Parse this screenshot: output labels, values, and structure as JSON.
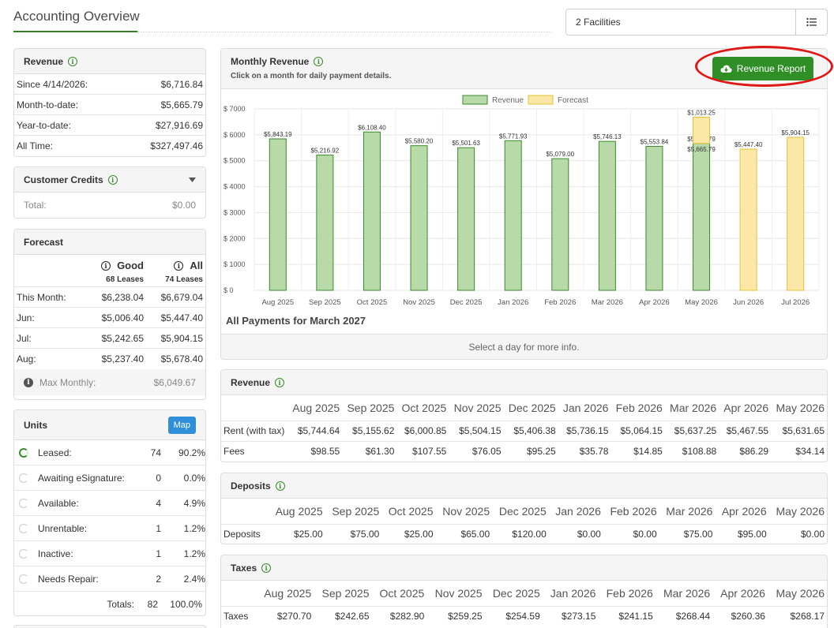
{
  "header": {
    "title": "Accounting Overview",
    "facility_select": "2 Facilities",
    "list_icon": "list-icon"
  },
  "revenue_summary": {
    "title": "Revenue",
    "rows": [
      {
        "label": "Since 4/14/2026:",
        "value": "$6,716.84"
      },
      {
        "label": "Month-to-date:",
        "value": "$5,665.79"
      },
      {
        "label": "Year-to-date:",
        "value": "$27,916.69"
      },
      {
        "label": "All Time:",
        "value": "$327,497.46"
      }
    ]
  },
  "customer_credits": {
    "title": "Customer Credits",
    "total_label": "Total:",
    "total_value": "$0.00"
  },
  "forecast": {
    "title": "Forecast",
    "col_good": "Good",
    "col_all": "All",
    "good_leases": "68 Leases",
    "all_leases": "74 Leases",
    "rows": [
      {
        "label": "This Month:",
        "good": "$6,238.04",
        "all": "$6,679.04"
      },
      {
        "label": "Jun:",
        "good": "$5,006.40",
        "all": "$5,447.40"
      },
      {
        "label": "Jul:",
        "good": "$5,242.65",
        "all": "$5,904.15"
      },
      {
        "label": "Aug:",
        "good": "$5,237.40",
        "all": "$5,678.40"
      }
    ],
    "max_label": "Max Monthly:",
    "max_value": "$6,049.67"
  },
  "units": {
    "title": "Units",
    "map_button": "Map",
    "rows": [
      {
        "label": "Leased:",
        "count": "74",
        "pct": "90.2%"
      },
      {
        "label": "Awaiting eSignature:",
        "count": "0",
        "pct": "0.0%"
      },
      {
        "label": "Available:",
        "count": "4",
        "pct": "4.9%"
      },
      {
        "label": "Unrentable:",
        "count": "1",
        "pct": "1.2%"
      },
      {
        "label": "Inactive:",
        "count": "1",
        "pct": "1.2%"
      },
      {
        "label": "Needs Repair:",
        "count": "2",
        "pct": "2.4%"
      }
    ],
    "totals_label": "Totals:",
    "totals_count": "82",
    "totals_pct": "100.0%"
  },
  "monthly_revenue": {
    "title": "Monthly Revenue",
    "subtitle": "Click on a month for daily payment details.",
    "report_button": "Revenue Report",
    "payments_title": "All Payments for March 2027",
    "select_hint": "Select a day for more info."
  },
  "chart_data": {
    "type": "bar",
    "categories": [
      "Aug 2025",
      "Sep 2025",
      "Oct 2025",
      "Nov 2025",
      "Dec 2025",
      "Jan 2026",
      "Feb 2026",
      "Mar 2026",
      "Apr 2026",
      "May 2026",
      "Jun 2026",
      "Jul 2026"
    ],
    "series": [
      {
        "name": "Revenue",
        "color": "#b8d9a8",
        "stroke": "#3a8a2c",
        "values": [
          5843.19,
          5216.92,
          6108.4,
          5580.2,
          5501.63,
          5771.93,
          5079.0,
          5746.13,
          5553.84,
          5665.79,
          null,
          null
        ],
        "labels": [
          "$5,843.19",
          "$5,216.92",
          "$6,108.40",
          "$5,580.20",
          "$5,501.63",
          "$5,771.93",
          "$5,079.00",
          "$5,746.13",
          "$5,553.84",
          "$5,665.79",
          "",
          ""
        ]
      },
      {
        "name": "Forecast",
        "color": "#fbe8a6",
        "stroke": "#e2c23a",
        "values": [
          null,
          null,
          null,
          null,
          null,
          null,
          null,
          null,
          null,
          1013.25,
          5447.4,
          5904.15
        ],
        "labels": [
          "",
          "",
          "",
          "",
          "",
          "",
          "",
          "",
          "",
          "$1,013.25",
          "$5,447.40",
          "$5,904.15"
        ]
      }
    ],
    "stacked": true,
    "ylim": [
      0,
      7000
    ],
    "yticks": [
      "$ 0",
      "$ 1000",
      "$ 2000",
      "$ 3000",
      "$ 4000",
      "$ 5000",
      "$ 6000",
      "$ 7000"
    ],
    "legend": "top-center",
    "grid": true
  },
  "revenue_table": {
    "title": "Revenue",
    "months": [
      "Aug 2025",
      "Sep 2025",
      "Oct 2025",
      "Nov 2025",
      "Dec 2025",
      "Jan 2026",
      "Feb 2026",
      "Mar 2026",
      "Apr 2026",
      "May 2026"
    ],
    "rows": [
      {
        "label": "Rent (with tax)",
        "values": [
          "$5,744.64",
          "$5,155.62",
          "$6,000.85",
          "$5,504.15",
          "$5,406.38",
          "$5,736.15",
          "$5,064.15",
          "$5,637.25",
          "$5,467.55",
          "$5,631.65"
        ]
      },
      {
        "label": "Fees",
        "values": [
          "$98.55",
          "$61.30",
          "$107.55",
          "$76.05",
          "$95.25",
          "$35.78",
          "$14.85",
          "$108.88",
          "$86.29",
          "$34.14"
        ]
      }
    ]
  },
  "deposits_table": {
    "title": "Deposits",
    "months": [
      "Aug 2025",
      "Sep 2025",
      "Oct 2025",
      "Nov 2025",
      "Dec 2025",
      "Jan 2026",
      "Feb 2026",
      "Mar 2026",
      "Apr 2026",
      "May 2026"
    ],
    "rows": [
      {
        "label": "Deposits",
        "values": [
          "$25.00",
          "$75.00",
          "$25.00",
          "$65.00",
          "$120.00",
          "$0.00",
          "$0.00",
          "$75.00",
          "$95.00",
          "$0.00"
        ]
      }
    ]
  },
  "taxes_table": {
    "title": "Taxes",
    "months": [
      "Aug 2025",
      "Sep 2025",
      "Oct 2025",
      "Nov 2025",
      "Dec 2025",
      "Jan 2026",
      "Feb 2026",
      "Mar 2026",
      "Apr 2026",
      "May 2026"
    ],
    "rows": [
      {
        "label": "Taxes",
        "values": [
          "$270.70",
          "$242.65",
          "$282.90",
          "$259.25",
          "$254.59",
          "$273.15",
          "$241.15",
          "$268.44",
          "$260.36",
          "$268.17"
        ]
      }
    ]
  }
}
